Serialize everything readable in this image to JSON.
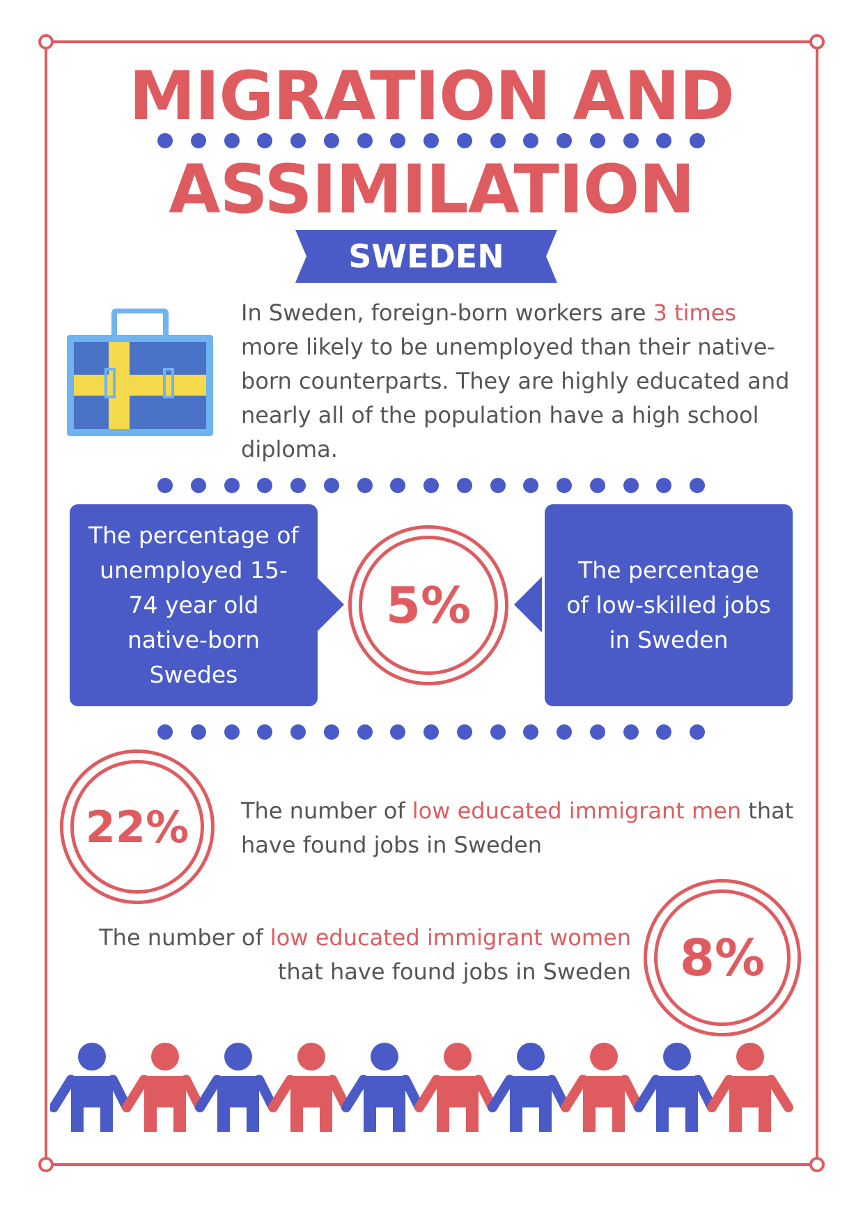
{
  "title": {
    "line1": "MIGRATION AND",
    "line2": "ASSIMILATION"
  },
  "banner": {
    "label": "SWEDEN"
  },
  "intro": {
    "before": "In Sweden, foreign-born workers are ",
    "highlight": "3 times",
    "after": " more likely to be unemployed than their native-born counterparts. They are highly educated and nearly all of the population have a high school diploma."
  },
  "stat_center": {
    "value": "5%",
    "left_text": "The percentage of unemployed 15-74 year old native-born Swedes",
    "right_text": "The percentage of low-skilled jobs in Sweden"
  },
  "stat_men": {
    "value": "22%",
    "before": "The number of ",
    "highlight": "low educated immigrant men",
    "after": " that have found jobs in Sweden"
  },
  "stat_women": {
    "value": "8%",
    "before": "The number of ",
    "highlight": "low educated immigrant women",
    "after": " that have found jobs in Sweden"
  },
  "colors": {
    "red": "#de5c60",
    "blue": "#4a5bc7",
    "yellow": "#f4d94a",
    "light_blue": "#6fb3f0"
  },
  "icons": {
    "briefcase": "sweden-briefcase-icon",
    "people": "people-chain-icon"
  }
}
